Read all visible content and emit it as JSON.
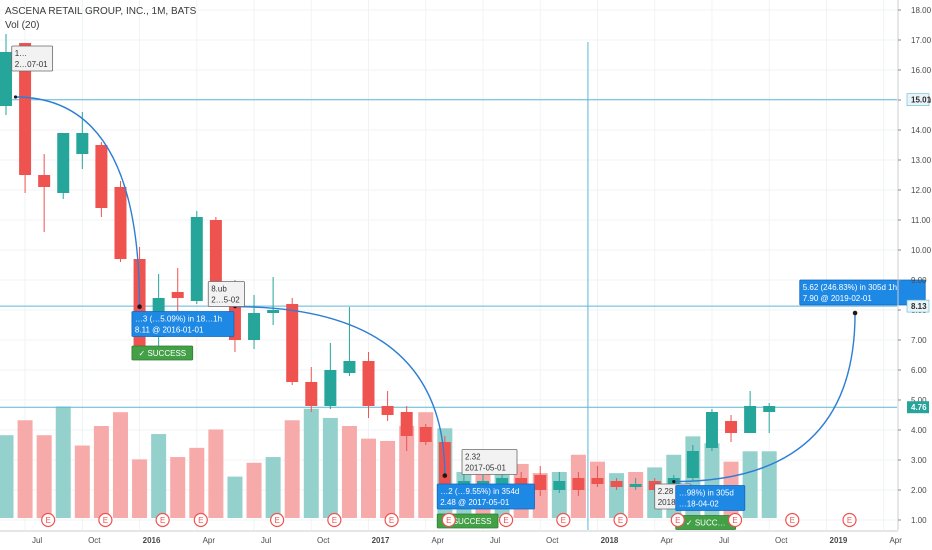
{
  "header": {
    "title": "ASCENA RETAIL GROUP, INC., 1M, BATS",
    "volume_label": "Vol (20)"
  },
  "colors": {
    "up": "#26a69a",
    "down": "#ef5350",
    "vol_up": "#8fcfc9",
    "vol_down": "#f5a5a5",
    "arc": "#2d7ed4",
    "hline": "#5db7d6",
    "box_blue": "#1e88e5",
    "success_green": "#43a047",
    "earnings": "#ef5350"
  },
  "chart_data": {
    "type": "candlestick",
    "y_axis_side": "right",
    "ylim": [
      0.7,
      18.3
    ],
    "y_ticks": [
      "1.00",
      "2.00",
      "3.00",
      "4.00",
      "5.00",
      "6.00",
      "7.00",
      "8.00",
      "9.00",
      "10.00",
      "11.00",
      "12.00",
      "13.00",
      "14.00",
      "15.00",
      "16.00",
      "17.00",
      "18.00"
    ],
    "x_ticks": [
      {
        "label": "Jul",
        "index": 1,
        "bold": false
      },
      {
        "label": "Oct",
        "index": 4,
        "bold": false
      },
      {
        "label": "2016",
        "index": 7,
        "bold": true
      },
      {
        "label": "Apr",
        "index": 10,
        "bold": false
      },
      {
        "label": "Jul",
        "index": 13,
        "bold": false
      },
      {
        "label": "Oct",
        "index": 16,
        "bold": false
      },
      {
        "label": "2017",
        "index": 19,
        "bold": true
      },
      {
        "label": "Apr",
        "index": 22,
        "bold": false
      },
      {
        "label": "Jul",
        "index": 25,
        "bold": false
      },
      {
        "label": "Oct",
        "index": 28,
        "bold": false
      },
      {
        "label": "2018",
        "index": 31,
        "bold": true
      },
      {
        "label": "Apr",
        "index": 34,
        "bold": false
      },
      {
        "label": "Jul",
        "index": 37,
        "bold": false
      },
      {
        "label": "Oct",
        "index": 40,
        "bold": false
      },
      {
        "label": "2019",
        "index": 43,
        "bold": true
      },
      {
        "label": "Apr",
        "index": 46,
        "bold": false
      }
    ],
    "candles": [
      {
        "o": 14.8,
        "h": 17.2,
        "l": 14.5,
        "c": 16.6
      },
      {
        "o": 16.9,
        "h": 16.9,
        "l": 11.9,
        "c": 12.5
      },
      {
        "o": 12.5,
        "h": 13.2,
        "l": 10.6,
        "c": 12.1
      },
      {
        "o": 11.9,
        "h": 13.9,
        "l": 11.7,
        "c": 13.9
      },
      {
        "o": 13.2,
        "h": 14.6,
        "l": 12.7,
        "c": 13.9
      },
      {
        "o": 13.5,
        "h": 13.6,
        "l": 11.1,
        "c": 11.4
      },
      {
        "o": 12.1,
        "h": 12.3,
        "l": 9.6,
        "c": 9.7
      },
      {
        "o": 9.7,
        "h": 10.1,
        "l": 6.4,
        "c": 6.6
      },
      {
        "o": 7.1,
        "h": 9.2,
        "l": 6.7,
        "c": 8.4
      },
      {
        "o": 8.6,
        "h": 9.4,
        "l": 7.5,
        "c": 8.4
      },
      {
        "o": 8.3,
        "h": 11.3,
        "l": 8.2,
        "c": 11.1
      },
      {
        "o": 11.0,
        "h": 11.1,
        "l": 8.4,
        "c": 8.7
      },
      {
        "o": 8.7,
        "h": 9.0,
        "l": 6.6,
        "c": 7.0
      },
      {
        "o": 7.0,
        "h": 8.5,
        "l": 6.7,
        "c": 7.9
      },
      {
        "o": 7.9,
        "h": 9.1,
        "l": 7.5,
        "c": 8.0
      },
      {
        "o": 8.2,
        "h": 8.4,
        "l": 5.5,
        "c": 5.6
      },
      {
        "o": 5.6,
        "h": 6.1,
        "l": 4.6,
        "c": 4.8
      },
      {
        "o": 4.8,
        "h": 6.9,
        "l": 4.7,
        "c": 6.0
      },
      {
        "o": 5.9,
        "h": 8.1,
        "l": 5.8,
        "c": 6.3
      },
      {
        "o": 6.3,
        "h": 6.6,
        "l": 4.4,
        "c": 4.8
      },
      {
        "o": 4.8,
        "h": 5.3,
        "l": 4.3,
        "c": 4.5
      },
      {
        "o": 4.6,
        "h": 4.8,
        "l": 3.3,
        "c": 3.8
      },
      {
        "o": 4.1,
        "h": 4.2,
        "l": 3.5,
        "c": 3.6
      },
      {
        "o": 3.6,
        "h": 3.8,
        "l": 1.6,
        "c": 1.8
      },
      {
        "o": 1.9,
        "h": 2.6,
        "l": 1.7,
        "c": 2.3
      },
      {
        "o": 2.2,
        "h": 2.5,
        "l": 1.8,
        "c": 2.3
      },
      {
        "o": 2.2,
        "h": 2.9,
        "l": 2.0,
        "c": 2.4
      },
      {
        "o": 2.4,
        "h": 2.6,
        "l": 1.9,
        "c": 2.1
      },
      {
        "o": 2.5,
        "h": 2.8,
        "l": 1.8,
        "c": 2.0
      },
      {
        "o": 2.0,
        "h": 2.6,
        "l": 1.9,
        "c": 2.3
      },
      {
        "o": 2.4,
        "h": 2.6,
        "l": 1.8,
        "c": 2.0
      },
      {
        "o": 2.4,
        "h": 2.8,
        "l": 2.1,
        "c": 2.2
      },
      {
        "o": 2.3,
        "h": 2.4,
        "l": 2.0,
        "c": 2.1
      },
      {
        "o": 2.1,
        "h": 2.4,
        "l": 2.0,
        "c": 2.2
      },
      {
        "o": 2.3,
        "h": 2.4,
        "l": 1.9,
        "c": 2.0
      },
      {
        "o": 2.1,
        "h": 2.5,
        "l": 2.0,
        "c": 2.4
      },
      {
        "o": 2.4,
        "h": 3.5,
        "l": 2.3,
        "c": 3.3
      },
      {
        "o": 3.4,
        "h": 4.7,
        "l": 3.3,
        "c": 4.6
      },
      {
        "o": 4.3,
        "h": 4.5,
        "l": 3.6,
        "c": 3.9
      },
      {
        "o": 3.9,
        "h": 5.3,
        "l": 3.9,
        "c": 4.8
      },
      {
        "o": 4.6,
        "h": 4.9,
        "l": 3.9,
        "c": 4.8
      }
    ],
    "volume": {
      "ylim": [
        0,
        1
      ],
      "bars": [
        {
          "v": 0.72,
          "up": true
        },
        {
          "v": 0.85,
          "up": false
        },
        {
          "v": 0.72,
          "up": false
        },
        {
          "v": 0.97,
          "up": true
        },
        {
          "v": 0.63,
          "up": false
        },
        {
          "v": 0.8,
          "up": false
        },
        {
          "v": 0.92,
          "up": false
        },
        {
          "v": 0.51,
          "up": false
        },
        {
          "v": 0.73,
          "up": true
        },
        {
          "v": 0.53,
          "up": false
        },
        {
          "v": 0.61,
          "up": false
        },
        {
          "v": 0.77,
          "up": false
        },
        {
          "v": 0.36,
          "up": true
        },
        {
          "v": 0.48,
          "up": false
        },
        {
          "v": 0.53,
          "up": true
        },
        {
          "v": 0.85,
          "up": false
        },
        {
          "v": 0.95,
          "up": true
        },
        {
          "v": 0.87,
          "up": true
        },
        {
          "v": 0.8,
          "up": false
        },
        {
          "v": 0.69,
          "up": false
        },
        {
          "v": 0.67,
          "up": false
        },
        {
          "v": 0.8,
          "up": false
        },
        {
          "v": 0.92,
          "up": false
        },
        {
          "v": 0.78,
          "up": true
        },
        {
          "v": 0.4,
          "up": true
        },
        {
          "v": 0.48,
          "up": false
        },
        {
          "v": 0.4,
          "up": true
        },
        {
          "v": 0.47,
          "up": false
        },
        {
          "v": 0.39,
          "up": false
        },
        {
          "v": 0.4,
          "up": true
        },
        {
          "v": 0.55,
          "up": false
        },
        {
          "v": 0.49,
          "up": false
        },
        {
          "v": 0.39,
          "up": true
        },
        {
          "v": 0.4,
          "up": false
        },
        {
          "v": 0.44,
          "up": true
        },
        {
          "v": 0.55,
          "up": true
        },
        {
          "v": 0.71,
          "up": true
        },
        {
          "v": 0.65,
          "up": true
        },
        {
          "v": 0.49,
          "up": false
        },
        {
          "v": 0.58,
          "up": true
        },
        {
          "v": 0.58,
          "up": true
        }
      ]
    },
    "earnings_markers": {
      "label": "E",
      "indices": [
        2,
        5,
        8,
        10,
        14,
        17,
        20,
        23,
        26,
        29,
        32,
        35,
        38,
        41,
        44
      ]
    },
    "horizontal_lines": [
      {
        "y": 15.01,
        "label": "15.01",
        "label_color": "#2a2a2a"
      },
      {
        "y": 8.13,
        "label": "8.13",
        "label_color": "#2a2a2a"
      },
      {
        "y": 4.76,
        "label": "4.76",
        "label_color": "#ffffff",
        "label_bg": "#26a69a"
      }
    ],
    "vertical_line": {
      "index": 30.5
    },
    "arcs": [
      {
        "from": {
          "i": 0.5,
          "y": 15.1
        },
        "to": {
          "i": 7,
          "y": 8.11
        }
      },
      {
        "from": {
          "i": 12,
          "y": 8.11
        },
        "to": {
          "i": 23,
          "y": 2.48
        }
      },
      {
        "from": {
          "i": 35,
          "y": 2.28
        },
        "to": {
          "i": 44.5,
          "y": 7.9
        }
      }
    ],
    "annotations": [
      {
        "id": "a1",
        "kind": "box",
        "i": 0.3,
        "y": 16.8,
        "lines": [
          "1…",
          "2…07-01"
        ],
        "style": "grey"
      },
      {
        "id": "a2",
        "kind": "box",
        "i": 6.6,
        "y": 7.95,
        "lines": [
          "…3 (…5.09%) in 18…1h",
          "8.11  @ 2016-01-01"
        ],
        "style": "blue"
      },
      {
        "id": "a3",
        "kind": "badge",
        "i": 6.6,
        "y": 6.8,
        "lines": [
          "✓ SUCCESS"
        ],
        "style": "green"
      },
      {
        "id": "a4",
        "kind": "box",
        "i": 10.6,
        "y": 8.95,
        "lines": [
          "8.ub",
          "2…5-02"
        ],
        "style": "grey"
      },
      {
        "id": "a5",
        "kind": "box",
        "i": 23.9,
        "y": 3.35,
        "lines": [
          "2.32",
          "2017-05-01"
        ],
        "style": "grey"
      },
      {
        "id": "a6",
        "kind": "box",
        "i": 22.6,
        "y": 2.2,
        "lines": [
          "…2 (…9.55%) in 354d",
          "2.48  @ 2017-05-01"
        ],
        "style": "blue"
      },
      {
        "id": "a7",
        "kind": "badge",
        "i": 22.6,
        "y": 1.2,
        "lines": [
          "✓ SUCCESS"
        ],
        "style": "green"
      },
      {
        "id": "a8",
        "kind": "box",
        "i": 34.0,
        "y": 2.2,
        "lines": [
          "2.28",
          "2018-…"
        ],
        "style": "grey"
      },
      {
        "id": "a9",
        "kind": "box",
        "i": 35.1,
        "y": 2.15,
        "lines": [
          "…98%) in 305d",
          "…18-04-02"
        ],
        "style": "blue"
      },
      {
        "id": "a10",
        "kind": "badge",
        "i": 35.1,
        "y": 1.15,
        "lines": [
          "✓ SUCC…"
        ],
        "style": "green"
      },
      {
        "id": "a11",
        "kind": "box",
        "i": 41.6,
        "y": 9.0,
        "lines": [
          "5.62 (246.83%) in 305d 1h",
          "7.90  @ 2019-02-01"
        ],
        "style": "blue"
      }
    ]
  }
}
